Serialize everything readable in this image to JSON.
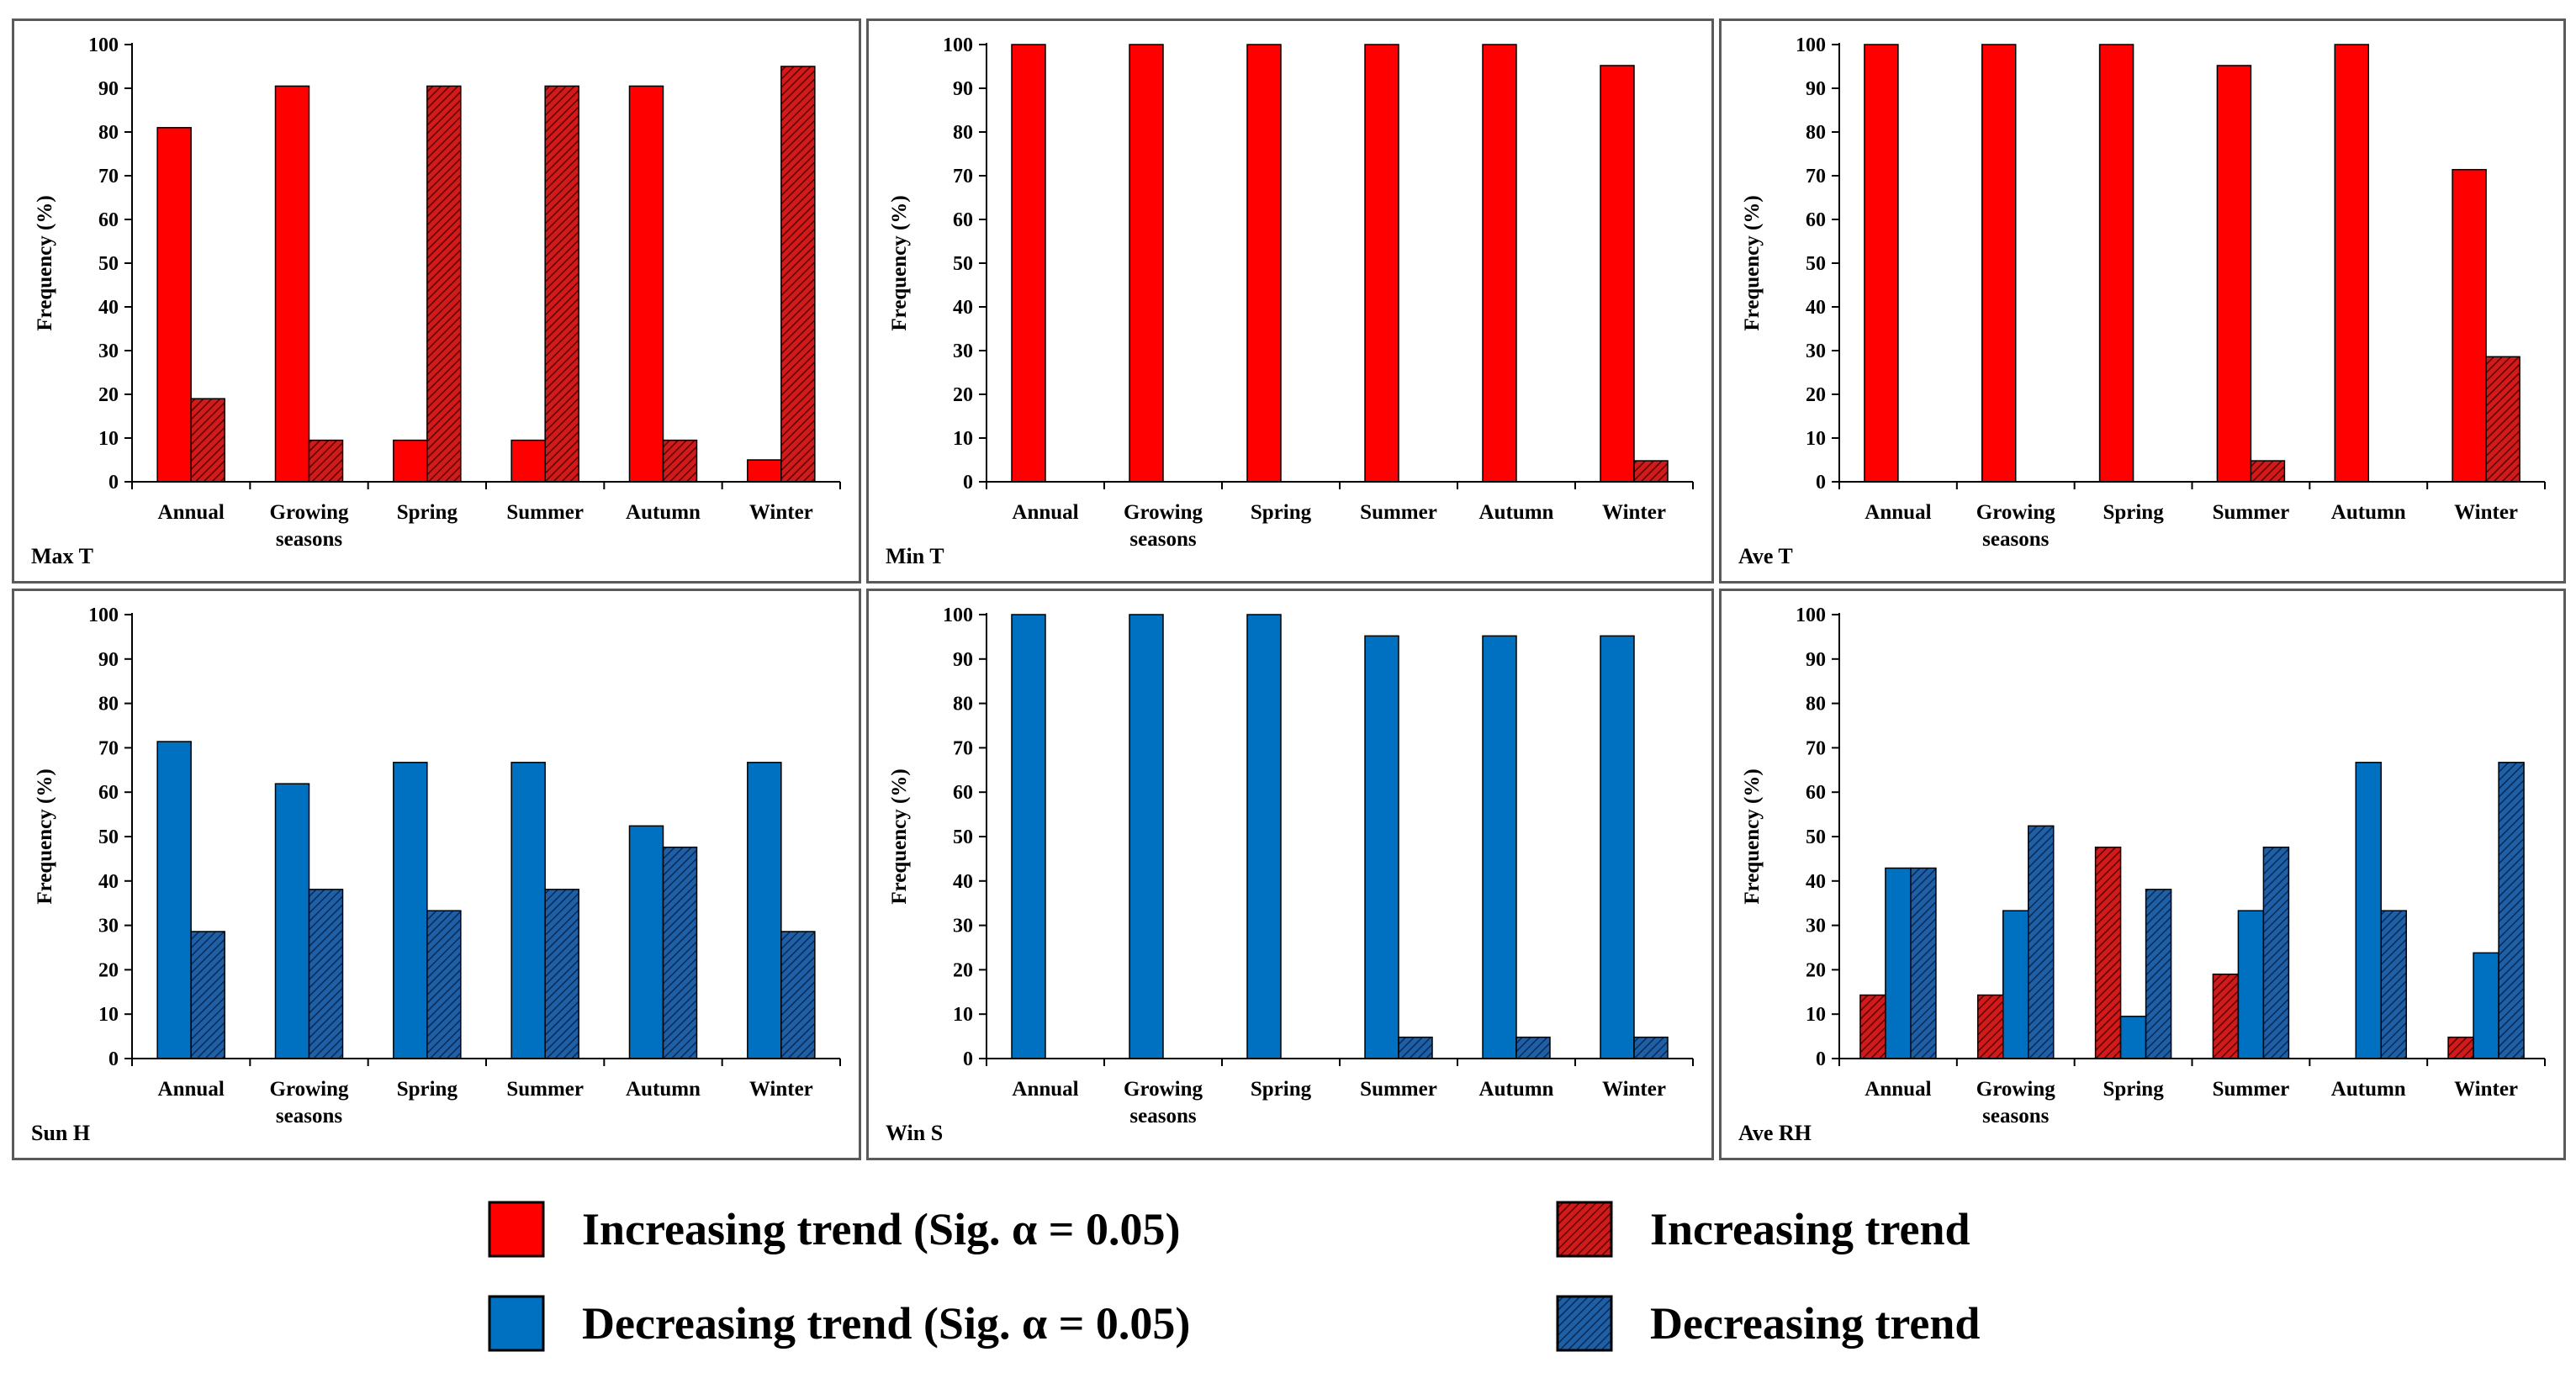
{
  "colors": {
    "increasing_sig": "#ff0000",
    "increasing": "#d11a1a",
    "decreasing_sig": "#0070c0",
    "decreasing": "#1f5fa6",
    "axis": "#000000"
  },
  "legend": {
    "items": [
      {
        "label": "Increasing trend (Sig. α = 0.05)",
        "style": "inc-sig"
      },
      {
        "label": "Increasing trend",
        "style": "inc"
      },
      {
        "label": "Decreasing trend (Sig. α = 0.05)",
        "style": "dec-sig"
      },
      {
        "label": "Decreasing trend",
        "style": "dec"
      }
    ]
  },
  "chart_data": [
    {
      "type": "bar",
      "title": "Max T",
      "ylabel": "Frequency (%)",
      "ylim": [
        0,
        100
      ],
      "yticks": [
        0,
        10,
        20,
        30,
        40,
        50,
        60,
        70,
        80,
        90,
        100
      ],
      "categories": [
        "Annual",
        "Growing seasons",
        "Spring",
        "Summer",
        "Autumn",
        "Winter"
      ],
      "series": [
        {
          "name": "Increasing trend (Sig. α = 0.05)",
          "style": "inc-sig",
          "values": [
            81,
            90.5,
            9.5,
            9.5,
            90.5,
            5
          ]
        },
        {
          "name": "Increasing trend",
          "style": "inc",
          "values": [
            19,
            9.5,
            90.5,
            90.5,
            9.5,
            95
          ]
        }
      ]
    },
    {
      "type": "bar",
      "title": "Min T",
      "ylabel": "Frequency (%)",
      "ylim": [
        0,
        100
      ],
      "yticks": [
        0,
        10,
        20,
        30,
        40,
        50,
        60,
        70,
        80,
        90,
        100
      ],
      "categories": [
        "Annual",
        "Growing seasons",
        "Spring",
        "Summer",
        "Autumn",
        "Winter"
      ],
      "series": [
        {
          "name": "Increasing trend (Sig. α = 0.05)",
          "style": "inc-sig",
          "values": [
            100,
            100,
            100,
            100,
            100,
            95.2
          ]
        },
        {
          "name": "Increasing trend",
          "style": "inc",
          "values": [
            0,
            0,
            0,
            0,
            0,
            4.8
          ]
        }
      ]
    },
    {
      "type": "bar",
      "title": "Ave T",
      "ylabel": "Frequency (%)",
      "ylim": [
        0,
        100
      ],
      "yticks": [
        0,
        10,
        20,
        30,
        40,
        50,
        60,
        70,
        80,
        90,
        100
      ],
      "categories": [
        "Annual",
        "Growing seasons",
        "Spring",
        "Summer",
        "Autumn",
        "Winter"
      ],
      "series": [
        {
          "name": "Increasing trend (Sig. α = 0.05)",
          "style": "inc-sig",
          "values": [
            100,
            100,
            100,
            95.2,
            100,
            71.4
          ]
        },
        {
          "name": "Increasing trend",
          "style": "inc",
          "values": [
            0,
            0,
            0,
            4.8,
            0,
            28.6
          ]
        }
      ]
    },
    {
      "type": "bar",
      "title": "Sun H",
      "ylabel": "Frequency (%)",
      "ylim": [
        0,
        100
      ],
      "yticks": [
        0,
        10,
        20,
        30,
        40,
        50,
        60,
        70,
        80,
        90,
        100
      ],
      "categories": [
        "Annual",
        "Growing seasons",
        "Spring",
        "Summer",
        "Autumn",
        "Winter"
      ],
      "series": [
        {
          "name": "Decreasing trend (Sig. α = 0.05)",
          "style": "dec-sig",
          "values": [
            71.4,
            61.9,
            66.7,
            66.7,
            52.4,
            66.7
          ]
        },
        {
          "name": "Decreasing trend",
          "style": "dec",
          "values": [
            28.6,
            38.1,
            33.3,
            38.1,
            47.6,
            28.6
          ]
        }
      ]
    },
    {
      "type": "bar",
      "title": "Win S",
      "ylabel": "Frequency (%)",
      "ylim": [
        0,
        100
      ],
      "yticks": [
        0,
        10,
        20,
        30,
        40,
        50,
        60,
        70,
        80,
        90,
        100
      ],
      "categories": [
        "Annual",
        "Growing seasons",
        "Spring",
        "Summer",
        "Autumn",
        "Winter"
      ],
      "series": [
        {
          "name": "Decreasing trend (Sig. α = 0.05)",
          "style": "dec-sig",
          "values": [
            100,
            100,
            100,
            95.2,
            95.2,
            95.2
          ]
        },
        {
          "name": "Decreasing trend",
          "style": "dec",
          "values": [
            0,
            0,
            0,
            4.8,
            4.8,
            4.8
          ]
        }
      ]
    },
    {
      "type": "bar",
      "title": "Ave RH",
      "ylabel": "Frequency (%)",
      "ylim": [
        0,
        100
      ],
      "yticks": [
        0,
        10,
        20,
        30,
        40,
        50,
        60,
        70,
        80,
        90,
        100
      ],
      "categories": [
        "Annual",
        "Growing seasons",
        "Spring",
        "Summer",
        "Autumn",
        "Winter"
      ],
      "series": [
        {
          "name": "Increasing trend",
          "style": "inc",
          "values": [
            14.3,
            14.3,
            47.6,
            19,
            0,
            4.8
          ]
        },
        {
          "name": "Decreasing trend (Sig. α = 0.05)",
          "style": "dec-sig",
          "values": [
            42.9,
            33.3,
            9.5,
            33.3,
            66.7,
            23.8
          ]
        },
        {
          "name": "Decreasing trend",
          "style": "dec",
          "values": [
            42.9,
            52.4,
            38.1,
            47.6,
            33.3,
            66.7
          ]
        }
      ]
    }
  ]
}
